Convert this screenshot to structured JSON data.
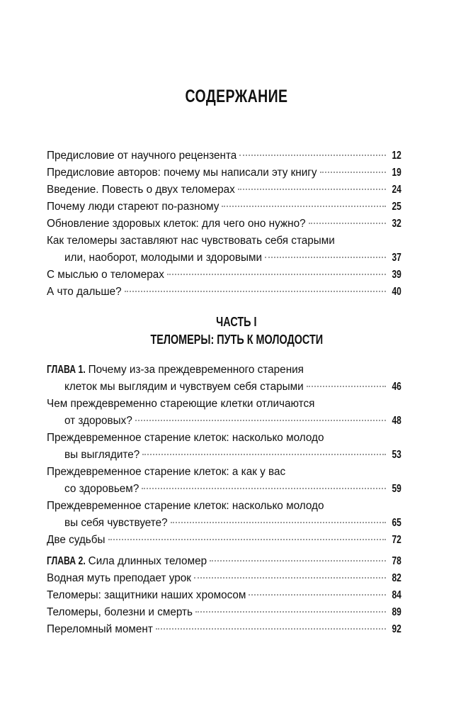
{
  "title": "СОДЕРЖАНИЕ",
  "front": [
    {
      "lines": [
        "Предисловие от научного рецензента"
      ],
      "page": "12"
    },
    {
      "lines": [
        "Предисловие авторов: почему мы написали эту книгу"
      ],
      "page": "19"
    },
    {
      "lines": [
        "Введение. Повесть о двух теломерах"
      ],
      "page": "24"
    },
    {
      "lines": [
        "Почему люди стареют по-разному"
      ],
      "page": "25"
    },
    {
      "lines": [
        "Обновление здоровых клеток: для чего оно нужно?"
      ],
      "page": "32"
    },
    {
      "lines": [
        "Как теломеры заставляют нас чувствовать себя старыми",
        "или, наоборот, молодыми и здоровыми"
      ],
      "page": "37"
    },
    {
      "lines": [
        "С мыслью о теломерах"
      ],
      "page": "39"
    },
    {
      "lines": [
        "А что дальше?"
      ],
      "page": "40"
    }
  ],
  "part": {
    "label": "ЧАСТЬ I",
    "title": "ТЕЛОМЕРЫ: ПУТЬ К МОЛОДОСТИ"
  },
  "chapter1": {
    "label": "ГЛАВА 1.",
    "lines": [
      "Почему из-за преждевременного старения",
      "клеток мы выглядим и чувствуем себя старыми"
    ],
    "page": "46",
    "items": [
      {
        "lines": [
          "Чем преждевременно стареющие клетки отличаются",
          "от здоровых?"
        ],
        "page": "48"
      },
      {
        "lines": [
          "Преждевременное старение клеток: насколько молодо",
          "вы выглядите?"
        ],
        "page": "53"
      },
      {
        "lines": [
          "Преждевременное старение клеток: а как у вас",
          "со здоровьем?"
        ],
        "page": "59"
      },
      {
        "lines": [
          "Преждевременное старение клеток: насколько молодо",
          "вы себя чувствуете?"
        ],
        "page": "65"
      },
      {
        "lines": [
          "Две судьбы"
        ],
        "page": "72"
      }
    ]
  },
  "chapter2": {
    "label": "ГЛАВА 2.",
    "lines": [
      "Сила длинных теломер"
    ],
    "page": "78",
    "items": [
      {
        "lines": [
          "Водная муть преподает урок"
        ],
        "page": "82"
      },
      {
        "lines": [
          "Теломеры: защитники наших хромосом"
        ],
        "page": "84"
      },
      {
        "lines": [
          "Теломеры, болезни и смерть"
        ],
        "page": "89"
      },
      {
        "lines": [
          "Переломный момент"
        ],
        "page": "92"
      }
    ]
  }
}
